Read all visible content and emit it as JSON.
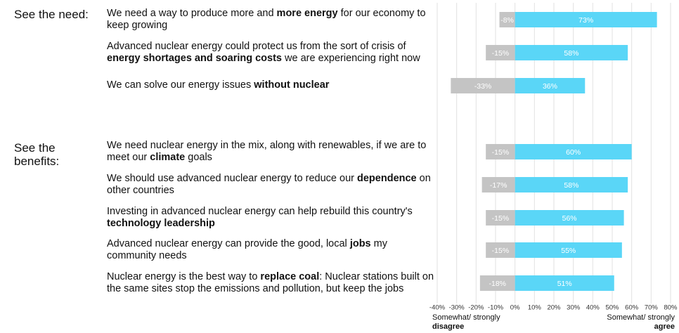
{
  "chart_data": {
    "type": "bar",
    "orientation": "horizontal",
    "groups": [
      {
        "label": "See the need:",
        "categories": [
          [
            "We need a way to produce more and ",
            "more energy",
            " for our economy to keep growing"
          ],
          [
            "Advanced nuclear energy could protect us from the sort of crisis of ",
            "energy shortages and soaring costs",
            " we are experiencing right now"
          ],
          [
            "We can solve our energy issues ",
            "without nuclear"
          ]
        ]
      },
      {
        "label": "See the benefits:",
        "categories": [
          [
            "We need nuclear energy in the mix, along with renewables, if we are to meet our ",
            "climate",
            " goals"
          ],
          [
            "We should use advanced nuclear energy to reduce our ",
            "dependence",
            " on other countries"
          ],
          [
            "Investing in advanced nuclear energy can help rebuild this country's ",
            "technology leadership"
          ],
          [
            "Advanced nuclear energy can provide the good, local ",
            "jobs",
            " my community needs"
          ],
          [
            "Nuclear energy is the best way to ",
            "replace coal",
            ": Nuclear stations built on the same sites stop the emissions and pollution, but keep the jobs"
          ]
        ]
      }
    ],
    "series": [
      {
        "name": [
          "Somewhat/ strongly ",
          "disagree"
        ],
        "color": "#c4c4c4",
        "values": [
          -8,
          -15,
          -33,
          -15,
          -17,
          -15,
          -15,
          -18
        ],
        "value_labels": [
          "-8%",
          "-15%",
          "-33%",
          "-15%",
          "-17%",
          "-15%",
          "-15%",
          "-18%"
        ]
      },
      {
        "name": [
          "Somewhat/ strongly ",
          "agree"
        ],
        "color": "#5ad6f7",
        "values": [
          73,
          58,
          36,
          60,
          58,
          56,
          55,
          51
        ],
        "value_labels": [
          "73%",
          "58%",
          "36%",
          "60%",
          "58%",
          "56%",
          "55%",
          "51%"
        ]
      }
    ],
    "xlim": [
      -40,
      80
    ],
    "xticks": [
      {
        "value": -40,
        "label": "-40%"
      },
      {
        "value": -30,
        "label": "-30%"
      },
      {
        "value": -20,
        "label": "-20%"
      },
      {
        "value": -10,
        "label": "-10%"
      },
      {
        "value": 0,
        "label": "0%"
      },
      {
        "value": 10,
        "label": "10%"
      },
      {
        "value": 20,
        "label": "20%"
      },
      {
        "value": 30,
        "label": "30%"
      },
      {
        "value": 40,
        "label": "40%"
      },
      {
        "value": 50,
        "label": "50%"
      },
      {
        "value": 60,
        "label": "60%"
      },
      {
        "value": 70,
        "label": "70%"
      },
      {
        "value": 80,
        "label": "80%"
      }
    ],
    "grid": true
  }
}
